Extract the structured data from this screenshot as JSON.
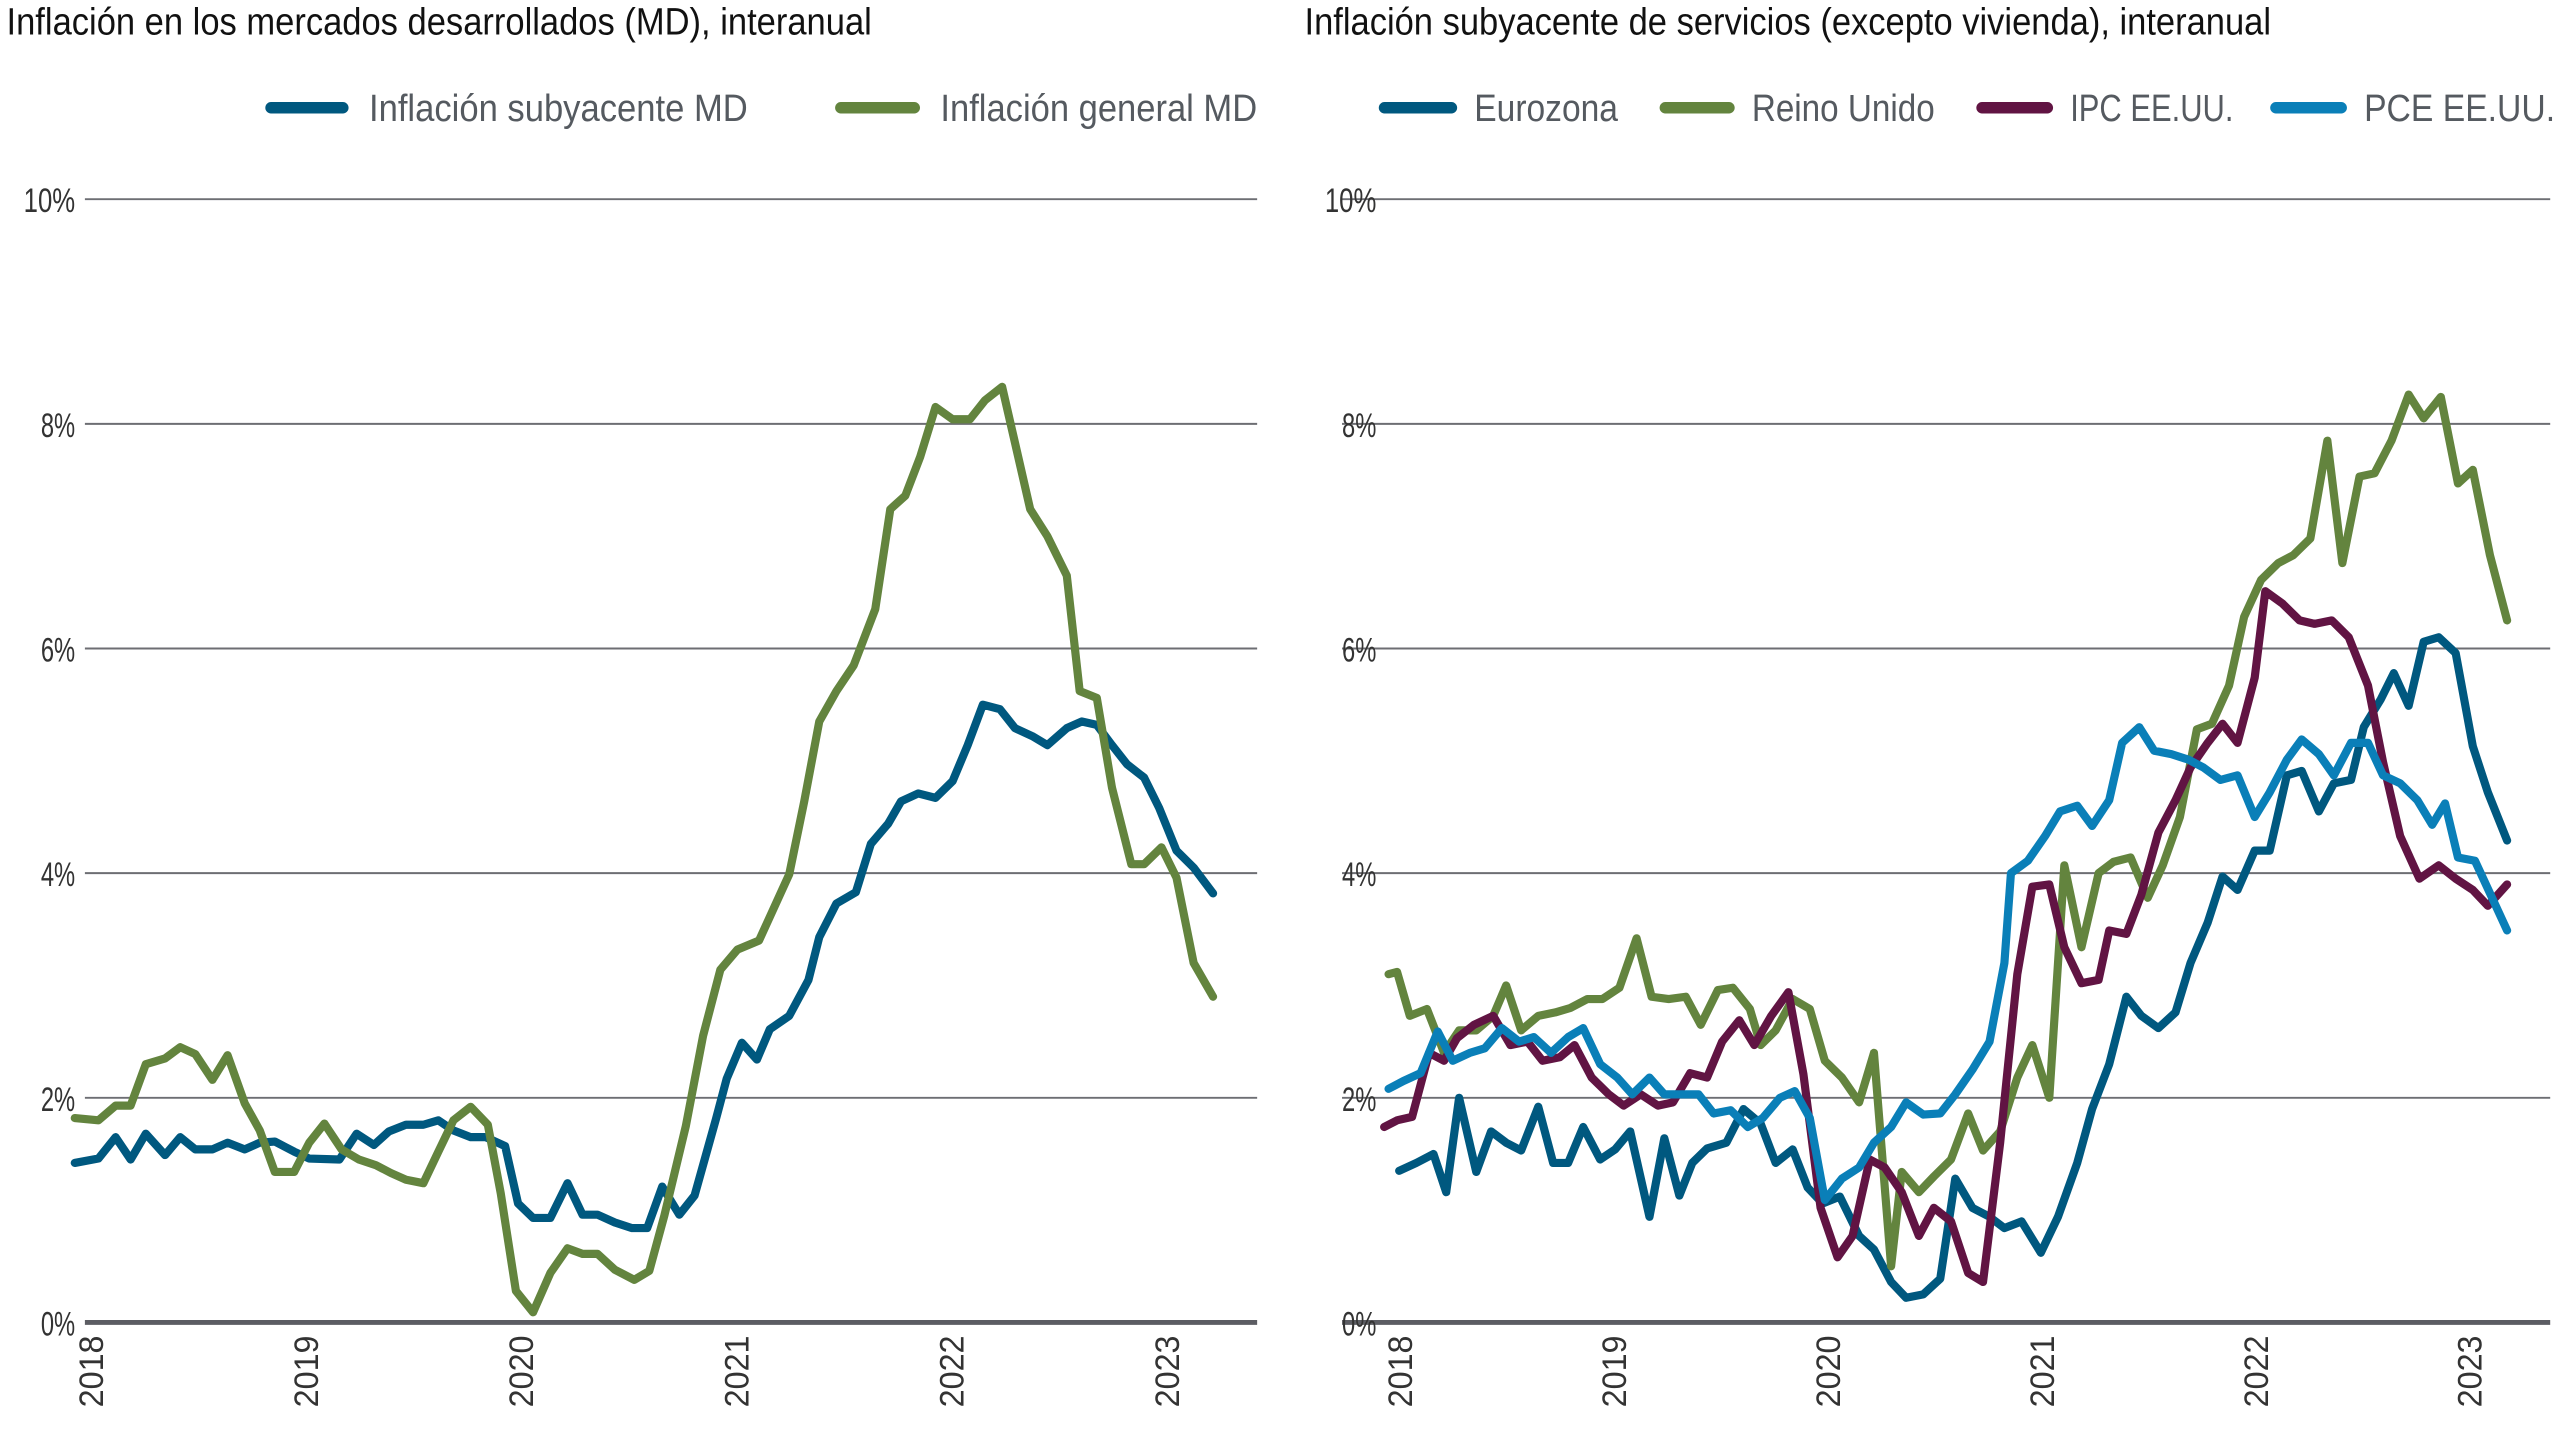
{
  "colors": {
    "dark_blue": "#00587f",
    "green": "#63843e",
    "maroon": "#611443",
    "light_blue": "#0a7fb8",
    "grid": "#6d6e73"
  },
  "chart_data": [
    {
      "type": "line",
      "title": "Inflación en los mercados desarrollados (MD), interanual",
      "xlabel": "",
      "ylabel": "",
      "xlim": [
        2018,
        2023.5
      ],
      "ylim": [
        0,
        10
      ],
      "y_ticks": [
        "0%",
        "2%",
        "4%",
        "6%",
        "8%",
        "10%"
      ],
      "y_tick_values": [
        0,
        2,
        4,
        6,
        8,
        10
      ],
      "x_ticks": [
        "2018",
        "2019",
        "2020",
        "2021",
        "2022",
        "2023"
      ],
      "grid": "horizontal",
      "legend": "top-right",
      "series": [
        {
          "name": "Inflación subyacente MD",
          "color": "#00587f",
          "x": [
            2017.93,
            2018.04,
            2018.12,
            2018.19,
            2018.26,
            2018.35,
            2018.42,
            2018.49,
            2018.57,
            2018.64,
            2018.72,
            2018.79,
            2018.86,
            2018.95,
            2019.02,
            2019.16,
            2019.24,
            2019.32,
            2019.39,
            2019.47,
            2019.55,
            2019.62,
            2019.69,
            2019.77,
            2019.84,
            2019.93,
            2019.99,
            2020.06,
            2020.14,
            2020.22,
            2020.29,
            2020.36,
            2020.44,
            2020.52,
            2020.59,
            2020.66,
            2020.74,
            2020.81,
            2020.91,
            2020.96,
            2021.03,
            2021.1,
            2021.16,
            2021.25,
            2021.34,
            2021.39,
            2021.47,
            2021.56,
            2021.63,
            2021.71,
            2021.77,
            2021.85,
            2021.93,
            2022.01,
            2022.08,
            2022.15,
            2022.23,
            2022.3,
            2022.38,
            2022.45,
            2022.54,
            2022.61,
            2022.68,
            2022.75,
            2022.82,
            2022.9,
            2022.97,
            2023.05,
            2023.13,
            2023.22
          ],
          "y": [
            1.42,
            1.46,
            1.65,
            1.45,
            1.68,
            1.49,
            1.65,
            1.54,
            1.54,
            1.6,
            1.54,
            1.6,
            1.61,
            1.52,
            1.46,
            1.45,
            1.68,
            1.58,
            1.7,
            1.76,
            1.76,
            1.8,
            1.71,
            1.65,
            1.65,
            1.57,
            1.06,
            0.93,
            0.93,
            1.24,
            0.96,
            0.96,
            0.89,
            0.84,
            0.84,
            1.21,
            0.96,
            1.13,
            1.81,
            2.17,
            2.49,
            2.34,
            2.61,
            2.73,
            3.05,
            3.43,
            3.73,
            3.83,
            4.26,
            4.44,
            4.64,
            4.71,
            4.67,
            4.82,
            5.14,
            5.5,
            5.46,
            5.29,
            5.22,
            5.14,
            5.29,
            5.35,
            5.32,
            5.14,
            4.97,
            4.85,
            4.58,
            4.2,
            4.05,
            3.82
          ]
        },
        {
          "name": "Inflación general MD",
          "color": "#63843e",
          "x": [
            2017.93,
            2018.04,
            2018.12,
            2018.19,
            2018.26,
            2018.35,
            2018.42,
            2018.49,
            2018.57,
            2018.64,
            2018.72,
            2018.79,
            2018.86,
            2018.95,
            2019.02,
            2019.09,
            2019.17,
            2019.25,
            2019.33,
            2019.4,
            2019.47,
            2019.55,
            2019.62,
            2019.69,
            2019.77,
            2019.85,
            2019.91,
            2019.98,
            2020.06,
            2020.14,
            2020.22,
            2020.29,
            2020.36,
            2020.44,
            2020.53,
            2020.6,
            2020.67,
            2020.77,
            2020.85,
            2020.93,
            2021.01,
            2021.11,
            2021.25,
            2021.32,
            2021.39,
            2021.47,
            2021.55,
            2021.65,
            2021.72,
            2021.79,
            2021.86,
            2021.93,
            2022.01,
            2022.09,
            2022.16,
            2022.24,
            2022.3,
            2022.37,
            2022.45,
            2022.54,
            2022.6,
            2022.68,
            2022.75,
            2022.84,
            2022.9,
            2022.98,
            2023.05,
            2023.13,
            2023.22
          ],
          "y": [
            1.82,
            1.8,
            1.93,
            1.93,
            2.3,
            2.35,
            2.45,
            2.39,
            2.16,
            2.38,
            1.95,
            1.71,
            1.34,
            1.34,
            1.6,
            1.77,
            1.54,
            1.45,
            1.4,
            1.33,
            1.27,
            1.24,
            1.52,
            1.8,
            1.92,
            1.76,
            1.15,
            0.28,
            0.09,
            0.44,
            0.66,
            0.61,
            0.61,
            0.47,
            0.38,
            0.46,
            0.95,
            1.75,
            2.55,
            3.14,
            3.32,
            3.4,
            3.99,
            4.64,
            5.35,
            5.62,
            5.85,
            6.35,
            7.24,
            7.36,
            7.71,
            8.15,
            8.04,
            8.04,
            8.21,
            8.33,
            7.83,
            7.24,
            7.0,
            6.65,
            5.62,
            5.56,
            4.76,
            4.08,
            4.08,
            4.23,
            3.96,
            3.2,
            2.9
          ]
        }
      ]
    },
    {
      "type": "line",
      "title": "Inflación subyacente de servicios (excepto vivienda), interanual",
      "xlabel": "",
      "ylabel": "",
      "xlim": [
        2018,
        2023.5
      ],
      "ylim": [
        0,
        10
      ],
      "y_ticks": [
        "0%",
        "2%",
        "4%",
        "6%",
        "8%",
        "10%"
      ],
      "y_tick_values": [
        0,
        2,
        4,
        6,
        8,
        10
      ],
      "x_ticks": [
        "2018",
        "2019",
        "2020",
        "2021",
        "2022",
        "2023"
      ],
      "grid": "horizontal",
      "legend": "top",
      "series": [
        {
          "name": "Eurozona",
          "color": "#00587f",
          "x": [
            2018.0,
            2018.08,
            2018.16,
            2018.22,
            2018.28,
            2018.36,
            2018.43,
            2018.5,
            2018.57,
            2018.65,
            2018.72,
            2018.79,
            2018.86,
            2018.94,
            2019.01,
            2019.08,
            2019.17,
            2019.24,
            2019.31,
            2019.37,
            2019.44,
            2019.53,
            2019.61,
            2019.69,
            2019.76,
            2019.84,
            2019.91,
            2019.98,
            2020.06,
            2020.15,
            2020.22,
            2020.3,
            2020.37,
            2020.45,
            2020.53,
            2020.6,
            2020.68,
            2020.76,
            2020.83,
            2020.91,
            2021.0,
            2021.08,
            2021.17,
            2021.24,
            2021.32,
            2021.4,
            2021.47,
            2021.55,
            2021.63,
            2021.7,
            2021.78,
            2021.85,
            2021.92,
            2022.0,
            2022.07,
            2022.15,
            2022.22,
            2022.3,
            2022.37,
            2022.45,
            2022.51,
            2022.59,
            2022.65,
            2022.72,
            2022.79,
            2022.86,
            2022.94,
            2023.02,
            2023.09,
            2023.18
          ],
          "y": [
            1.35,
            1.42,
            1.5,
            1.16,
            2.0,
            1.34,
            1.7,
            1.6,
            1.53,
            1.92,
            1.42,
            1.42,
            1.74,
            1.45,
            1.54,
            1.7,
            0.94,
            1.64,
            1.13,
            1.42,
            1.55,
            1.6,
            1.9,
            1.77,
            1.42,
            1.54,
            1.2,
            1.06,
            1.12,
            0.77,
            0.65,
            0.36,
            0.22,
            0.25,
            0.39,
            1.28,
            1.02,
            0.94,
            0.84,
            0.9,
            0.62,
            0.94,
            1.42,
            1.9,
            2.3,
            2.9,
            2.73,
            2.62,
            2.76,
            3.2,
            3.56,
            3.97,
            3.85,
            4.2,
            4.2,
            4.87,
            4.91,
            4.55,
            4.8,
            4.83,
            5.3,
            5.55,
            5.78,
            5.49,
            6.06,
            6.1,
            5.96,
            5.13,
            4.72,
            4.29
          ]
        },
        {
          "name": "Reino Unido",
          "color": "#63843e",
          "x": [
            2017.95,
            2017.99,
            2018.05,
            2018.13,
            2018.21,
            2018.28,
            2018.36,
            2018.44,
            2018.5,
            2018.57,
            2018.65,
            2018.73,
            2018.8,
            2018.88,
            2018.95,
            2019.03,
            2019.11,
            2019.18,
            2019.26,
            2019.34,
            2019.41,
            2019.49,
            2019.56,
            2019.64,
            2019.69,
            2019.76,
            2019.84,
            2019.92,
            2019.99,
            2020.07,
            2020.15,
            2020.22,
            2020.3,
            2020.35,
            2020.43,
            2020.5,
            2020.58,
            2020.66,
            2020.73,
            2020.81,
            2020.89,
            2020.96,
            2021.04,
            2021.11,
            2021.19,
            2021.27,
            2021.34,
            2021.42,
            2021.5,
            2021.57,
            2021.65,
            2021.73,
            2021.8,
            2021.88,
            2021.95,
            2022.03,
            2022.11,
            2022.18,
            2022.26,
            2022.34,
            2022.41,
            2022.49,
            2022.56,
            2022.64,
            2022.72,
            2022.79,
            2022.87,
            2022.95,
            2023.02,
            2023.1,
            2023.18
          ],
          "y": [
            3.1,
            3.12,
            2.73,
            2.79,
            2.4,
            2.6,
            2.6,
            2.73,
            3.0,
            2.6,
            2.73,
            2.76,
            2.8,
            2.88,
            2.88,
            2.98,
            3.42,
            2.9,
            2.88,
            2.9,
            2.65,
            2.96,
            2.98,
            2.79,
            2.47,
            2.6,
            2.88,
            2.79,
            2.33,
            2.18,
            1.96,
            2.4,
            0.5,
            1.34,
            1.16,
            1.3,
            1.45,
            1.86,
            1.53,
            1.7,
            2.18,
            2.47,
            2.0,
            4.07,
            3.34,
            4.0,
            4.1,
            4.14,
            3.78,
            4.07,
            4.5,
            5.28,
            5.33,
            5.67,
            6.28,
            6.61,
            6.76,
            6.83,
            6.98,
            7.85,
            6.76,
            7.53,
            7.56,
            7.85,
            8.26,
            8.05,
            8.24,
            7.47,
            7.59,
            6.83,
            6.25
          ]
        },
        {
          "name": "IPC EE.UU.",
          "color": "#611443",
          "x": [
            2017.93,
            2017.99,
            2018.06,
            2018.14,
            2018.21,
            2018.27,
            2018.35,
            2018.44,
            2018.52,
            2018.6,
            2018.67,
            2018.75,
            2018.82,
            2018.9,
            2018.98,
            2019.05,
            2019.13,
            2019.21,
            2019.28,
            2019.36,
            2019.44,
            2019.51,
            2019.59,
            2019.66,
            2019.74,
            2019.82,
            2019.89,
            2019.97,
            2020.05,
            2020.12,
            2020.2,
            2020.27,
            2020.35,
            2020.43,
            2020.5,
            2020.58,
            2020.66,
            2020.73,
            2020.81,
            2020.89,
            2020.96,
            2021.04,
            2021.11,
            2021.19,
            2021.27,
            2021.32,
            2021.4,
            2021.47,
            2021.55,
            2021.63,
            2021.7,
            2021.78,
            2021.85,
            2021.92,
            2022.0,
            2022.05,
            2022.13,
            2022.21,
            2022.28,
            2022.36,
            2022.44,
            2022.53,
            2022.6,
            2022.68,
            2022.77,
            2022.86,
            2022.94,
            2023.02,
            2023.09,
            2023.18
          ],
          "y": [
            1.74,
            1.8,
            1.83,
            2.4,
            2.33,
            2.53,
            2.65,
            2.73,
            2.47,
            2.5,
            2.33,
            2.36,
            2.47,
            2.18,
            2.03,
            1.93,
            2.03,
            1.93,
            1.96,
            2.22,
            2.18,
            2.5,
            2.69,
            2.47,
            2.73,
            2.94,
            2.21,
            1.02,
            0.58,
            0.77,
            1.45,
            1.38,
            1.16,
            0.77,
            1.02,
            0.9,
            0.44,
            0.36,
            1.6,
            3.1,
            3.88,
            3.9,
            3.34,
            3.02,
            3.05,
            3.49,
            3.46,
            3.81,
            4.36,
            4.65,
            4.94,
            5.16,
            5.33,
            5.16,
            5.74,
            6.51,
            6.4,
            6.25,
            6.22,
            6.25,
            6.1,
            5.67,
            4.99,
            4.33,
            3.95,
            4.07,
            3.95,
            3.85,
            3.71,
            3.9
          ]
        },
        {
          "name": "PCE EE.UU.",
          "color": "#0a7fb8",
          "x": [
            2017.95,
            2018.02,
            2018.1,
            2018.18,
            2018.25,
            2018.33,
            2018.4,
            2018.48,
            2018.56,
            2018.63,
            2018.71,
            2018.79,
            2018.86,
            2018.94,
            2019.02,
            2019.09,
            2019.17,
            2019.24,
            2019.32,
            2019.4,
            2019.47,
            2019.55,
            2019.63,
            2019.7,
            2019.78,
            2019.85,
            2019.92,
            2019.99,
            2020.07,
            2020.15,
            2020.22,
            2020.3,
            2020.37,
            2020.45,
            2020.53,
            2020.6,
            2020.68,
            2020.76,
            2020.83,
            2020.86,
            2020.94,
            2021.02,
            2021.09,
            2021.17,
            2021.24,
            2021.32,
            2021.38,
            2021.46,
            2021.53,
            2021.61,
            2021.69,
            2021.76,
            2021.84,
            2021.92,
            2022.0,
            2022.07,
            2022.15,
            2022.22,
            2022.3,
            2022.37,
            2022.45,
            2022.53,
            2022.6,
            2022.68,
            2022.76,
            2022.83,
            2022.89,
            2022.95,
            2023.03,
            2023.11,
            2023.18
          ],
          "y": [
            2.08,
            2.15,
            2.22,
            2.59,
            2.33,
            2.4,
            2.44,
            2.62,
            2.5,
            2.54,
            2.4,
            2.54,
            2.62,
            2.3,
            2.18,
            2.03,
            2.18,
            2.03,
            2.03,
            2.03,
            1.86,
            1.89,
            1.74,
            1.82,
            2.0,
            2.06,
            1.82,
            1.09,
            1.28,
            1.38,
            1.6,
            1.74,
            1.96,
            1.85,
            1.86,
            2.03,
            2.25,
            2.5,
            3.2,
            4.0,
            4.11,
            4.33,
            4.55,
            4.6,
            4.42,
            4.65,
            5.16,
            5.3,
            5.09,
            5.06,
            5.01,
            4.94,
            4.83,
            4.87,
            4.5,
            4.72,
            5.01,
            5.19,
            5.06,
            4.87,
            5.16,
            5.16,
            4.87,
            4.8,
            4.65,
            4.43,
            4.62,
            4.14,
            4.11,
            3.78,
            3.49
          ]
        }
      ]
    }
  ]
}
